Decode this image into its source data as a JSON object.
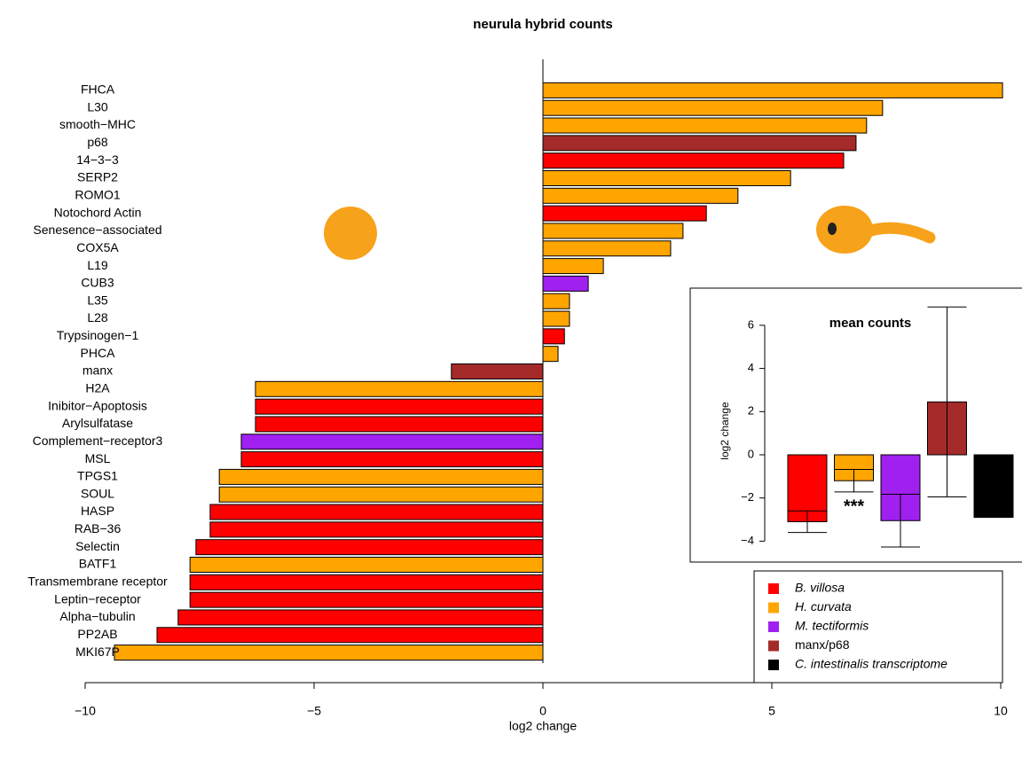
{
  "chart_data": [
    {
      "type": "barh",
      "title": "neurula hybrid counts",
      "x_label": "log2 change",
      "categories": [
        "FHCA",
        "L30",
        "smooth−MHC",
        "p68",
        "14−3−3",
        "SERP2",
        "ROMO1",
        "Notochord Actin",
        "Senesence−associated",
        "COX5A",
        "L19",
        "CUB3",
        "L35",
        "L28",
        "Trypsinogen−1",
        "PHCA",
        "manx",
        "H2A",
        "Inibitor−Apoptosis",
        "Arylsulfatase",
        "Complement−receptor3",
        "MSL",
        "TPGS1",
        "SOUL",
        "HASP",
        "RAB−36",
        "Selectin",
        "BATF1",
        "Transmembrane receptor",
        "Leptin−receptor",
        "Alpha−tubulin",
        "PP2AB",
        "MKI67P"
      ],
      "values": [
        10.04,
        7.42,
        7.07,
        6.84,
        6.57,
        5.41,
        4.26,
        3.57,
        3.06,
        2.79,
        1.32,
        0.99,
        0.58,
        0.58,
        0.47,
        0.33,
        -2.0,
        -6.28,
        -6.28,
        -6.28,
        -6.59,
        -6.59,
        -7.07,
        -7.07,
        -7.27,
        -7.27,
        -7.58,
        -7.71,
        -7.71,
        -7.71,
        -7.97,
        -8.43,
        -9.36
      ],
      "colors": [
        "#FFA500",
        "#FFA500",
        "#FFA500",
        "#A52A2A",
        "#FF0000",
        "#FFA500",
        "#FFA500",
        "#FF0000",
        "#FFA500",
        "#FFA500",
        "#FFA500",
        "#A020F0",
        "#FFA500",
        "#FFA500",
        "#FF0000",
        "#FFA500",
        "#A52A2A",
        "#FFA500",
        "#FF0000",
        "#FF0000",
        "#A020F0",
        "#FF0000",
        "#FFA500",
        "#FFA500",
        "#FF0000",
        "#FF0000",
        "#FF0000",
        "#FFA500",
        "#FF0000",
        "#FF0000",
        "#FF0000",
        "#FF0000",
        "#FFA500"
      ],
      "xlim": [
        -10,
        10
      ],
      "xticks": [
        {
          "value": -10,
          "label": "−10"
        },
        {
          "value": -5,
          "label": "−5"
        },
        0,
        5,
        10
      ]
    },
    {
      "type": "bar",
      "title": "mean counts",
      "y_label": "log2 change",
      "categories": [
        "B. villosa",
        "H. curvata",
        "M. tectiformis",
        "manx/p68",
        "C. intestinalis transcriptome"
      ],
      "values": [
        -3.1,
        -1.2,
        -3.05,
        2.45,
        -2.9
      ],
      "errors": [
        0.5,
        0.52,
        1.22,
        4.4,
        null
      ],
      "colors": [
        "#FF0000",
        "#FFA500",
        "#A020F0",
        "#A52A2A",
        "#000000"
      ],
      "annotation": "***",
      "annotation_index": 1,
      "ylim": [
        -4.6,
        6.9
      ],
      "yticks": [
        {
          "value": -4,
          "label": "−4"
        },
        {
          "value": -2,
          "label": "−2"
        },
        0,
        2,
        4,
        6
      ],
      "legend": "bottom-right"
    }
  ]
}
